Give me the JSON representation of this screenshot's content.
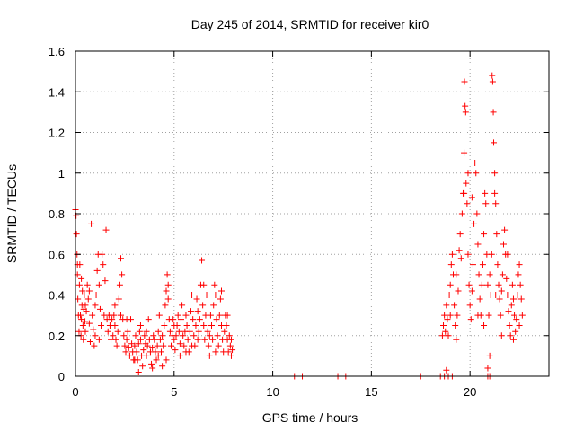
{
  "chart_data": {
    "type": "scatter",
    "title": "Day 245 of 2014, SRMTID for receiver kir0",
    "xlabel": "GPS time / hours",
    "ylabel": "SRMTID / TECUs",
    "xlim": [
      0,
      24
    ],
    "ylim": [
      0,
      1.6
    ],
    "xticks": [
      0,
      5,
      10,
      15,
      20
    ],
    "xtick_labels": [
      "0",
      "5",
      "10",
      "15",
      "20"
    ],
    "yticks": [
      0,
      0.2,
      0.4,
      0.6,
      0.8,
      1.0,
      1.2,
      1.4,
      1.6
    ],
    "ytick_labels": [
      "0",
      "0.2",
      "0.4",
      "0.6",
      "0.8",
      "1",
      "1.2",
      "1.4",
      "1.6"
    ],
    "grid": true,
    "marker": "+",
    "series": [
      {
        "name": "SRMTID",
        "color": "#ff0000",
        "points": [
          [
            0.0,
            0.82
          ],
          [
            0.03,
            0.79
          ],
          [
            0.05,
            0.7
          ],
          [
            0.08,
            0.6
          ],
          [
            0.1,
            0.5
          ],
          [
            0.12,
            0.38
          ],
          [
            0.15,
            0.3
          ],
          [
            0.18,
            0.22
          ],
          [
            0.2,
            0.45
          ],
          [
            0.22,
            0.55
          ],
          [
            0.25,
            0.3
          ],
          [
            0.28,
            0.2
          ],
          [
            0.3,
            0.28
          ],
          [
            0.33,
            0.35
          ],
          [
            0.35,
            0.42
          ],
          [
            0.38,
            0.25
          ],
          [
            0.4,
            0.18
          ],
          [
            0.42,
            0.33
          ],
          [
            0.45,
            0.4
          ],
          [
            0.48,
            0.27
          ],
          [
            0.5,
            0.22
          ],
          [
            0.55,
            0.32
          ],
          [
            0.6,
            0.45
          ],
          [
            0.65,
            0.38
          ],
          [
            0.7,
            0.26
          ],
          [
            0.75,
            0.17
          ],
          [
            0.8,
            0.75
          ],
          [
            0.85,
            0.3
          ],
          [
            0.9,
            0.23
          ],
          [
            0.95,
            0.15
          ],
          [
            1.0,
            0.35
          ],
          [
            1.05,
            0.4
          ],
          [
            1.1,
            0.52
          ],
          [
            1.15,
            0.6
          ],
          [
            1.2,
            0.45
          ],
          [
            1.25,
            0.33
          ],
          [
            1.3,
            0.25
          ],
          [
            1.35,
            0.6
          ],
          [
            1.4,
            0.55
          ],
          [
            1.45,
            0.3
          ],
          [
            1.5,
            0.47
          ],
          [
            1.55,
            0.72
          ],
          [
            1.6,
            0.28
          ],
          [
            1.65,
            0.22
          ],
          [
            1.7,
            0.3
          ],
          [
            1.75,
            0.25
          ],
          [
            1.8,
            0.18
          ],
          [
            1.85,
            0.28
          ],
          [
            1.9,
            0.2
          ],
          [
            1.95,
            0.3
          ],
          [
            2.0,
            0.25
          ],
          [
            2.05,
            0.18
          ],
          [
            2.1,
            0.15
          ],
          [
            2.15,
            0.22
          ],
          [
            2.2,
            0.38
          ],
          [
            2.25,
            0.45
          ],
          [
            2.3,
            0.58
          ],
          [
            2.35,
            0.5
          ],
          [
            2.4,
            0.28
          ],
          [
            2.45,
            0.2
          ],
          [
            2.5,
            0.15
          ],
          [
            2.55,
            0.12
          ],
          [
            2.6,
            0.18
          ],
          [
            2.65,
            0.22
          ],
          [
            2.7,
            0.14
          ],
          [
            2.75,
            0.1
          ],
          [
            2.8,
            0.28
          ],
          [
            2.85,
            0.16
          ],
          [
            2.9,
            0.12
          ],
          [
            2.95,
            0.08
          ],
          [
            3.0,
            0.15
          ],
          [
            3.05,
            0.2
          ],
          [
            3.1,
            0.12
          ],
          [
            3.15,
            0.08
          ],
          [
            3.2,
            0.16
          ],
          [
            3.25,
            0.22
          ],
          [
            3.3,
            0.18
          ],
          [
            3.35,
            0.1
          ],
          [
            3.4,
            0.05
          ],
          [
            3.45,
            0.13
          ],
          [
            3.5,
            0.2
          ],
          [
            3.55,
            0.16
          ],
          [
            3.6,
            0.1
          ],
          [
            3.65,
            0.15
          ],
          [
            3.7,
            0.28
          ],
          [
            3.75,
            0.18
          ],
          [
            3.8,
            0.12
          ],
          [
            3.85,
            0.06
          ],
          [
            3.9,
            0.14
          ],
          [
            3.95,
            0.2
          ],
          [
            4.0,
            0.18
          ],
          [
            4.05,
            0.12
          ],
          [
            4.1,
            0.08
          ],
          [
            4.15,
            0.15
          ],
          [
            4.2,
            0.22
          ],
          [
            4.25,
            0.3
          ],
          [
            4.3,
            0.18
          ],
          [
            4.35,
            0.12
          ],
          [
            4.4,
            0.2
          ],
          [
            4.45,
            0.15
          ],
          [
            4.5,
            0.25
          ],
          [
            4.55,
            0.35
          ],
          [
            4.6,
            0.42
          ],
          [
            4.65,
            0.5
          ],
          [
            4.7,
            0.38
          ],
          [
            4.75,
            0.28
          ],
          [
            4.8,
            0.22
          ],
          [
            4.85,
            0.15
          ],
          [
            4.9,
            0.2
          ],
          [
            4.95,
            0.28
          ],
          [
            5.0,
            0.18
          ],
          [
            5.05,
            0.13
          ],
          [
            5.1,
            0.2
          ],
          [
            5.15,
            0.25
          ],
          [
            5.2,
            0.3
          ],
          [
            5.25,
            0.22
          ],
          [
            5.3,
            0.16
          ],
          [
            5.35,
            0.28
          ],
          [
            5.4,
            0.35
          ],
          [
            5.45,
            0.2
          ],
          [
            5.5,
            0.15
          ],
          [
            5.55,
            0.22
          ],
          [
            5.6,
            0.3
          ],
          [
            5.65,
            0.25
          ],
          [
            5.7,
            0.18
          ],
          [
            5.75,
            0.12
          ],
          [
            5.8,
            0.22
          ],
          [
            5.85,
            0.32
          ],
          [
            5.9,
            0.4
          ],
          [
            5.95,
            0.28
          ],
          [
            6.0,
            0.2
          ],
          [
            6.05,
            0.15
          ],
          [
            6.1,
            0.25
          ],
          [
            6.15,
            0.38
          ],
          [
            6.2,
            0.32
          ],
          [
            6.25,
            0.22
          ],
          [
            6.3,
            0.28
          ],
          [
            6.35,
            0.45
          ],
          [
            6.4,
            0.57
          ],
          [
            6.45,
            0.35
          ],
          [
            6.5,
            0.25
          ],
          [
            6.55,
            0.18
          ],
          [
            6.6,
            0.3
          ],
          [
            6.65,
            0.4
          ],
          [
            6.7,
            0.22
          ],
          [
            6.75,
            0.15
          ],
          [
            6.8,
            0.2
          ],
          [
            6.85,
            0.3
          ],
          [
            6.9,
            0.25
          ],
          [
            6.95,
            0.18
          ],
          [
            7.0,
            0.35
          ],
          [
            7.05,
            0.45
          ],
          [
            7.1,
            0.4
          ],
          [
            7.15,
            0.28
          ],
          [
            7.2,
            0.2
          ],
          [
            7.25,
            0.15
          ],
          [
            7.3,
            0.3
          ],
          [
            7.35,
            0.38
          ],
          [
            7.4,
            0.25
          ],
          [
            7.45,
            0.18
          ],
          [
            7.5,
            0.12
          ],
          [
            7.55,
            0.22
          ],
          [
            7.6,
            0.3
          ],
          [
            7.65,
            0.25
          ],
          [
            7.7,
            0.18
          ],
          [
            7.75,
            0.12
          ],
          [
            7.8,
            0.2
          ],
          [
            7.85,
            0.15
          ],
          [
            7.9,
            0.1
          ],
          [
            7.95,
            0.13
          ],
          [
            0.1,
            0.55
          ],
          [
            0.3,
            0.48
          ],
          [
            0.5,
            0.35
          ],
          [
            0.7,
            0.42
          ],
          [
            1.0,
            0.2
          ],
          [
            1.2,
            0.18
          ],
          [
            1.8,
            0.3
          ],
          [
            2.0,
            0.35
          ],
          [
            2.3,
            0.3
          ],
          [
            2.6,
            0.28
          ],
          [
            3.0,
            0.08
          ],
          [
            3.3,
            0.25
          ],
          [
            3.6,
            0.22
          ],
          [
            3.9,
            0.04
          ],
          [
            4.2,
            0.1
          ],
          [
            4.4,
            0.05
          ],
          [
            4.7,
            0.45
          ],
          [
            5.0,
            0.25
          ],
          [
            5.3,
            0.1
          ],
          [
            5.6,
            0.12
          ],
          [
            5.9,
            0.15
          ],
          [
            6.2,
            0.18
          ],
          [
            6.5,
            0.45
          ],
          [
            6.8,
            0.1
          ],
          [
            7.1,
            0.12
          ],
          [
            7.4,
            0.42
          ],
          [
            7.7,
            0.3
          ],
          [
            7.9,
            0.18
          ],
          [
            3.2,
            0.02
          ],
          [
            4.6,
            0.08
          ],
          [
            11.1,
            0.0
          ],
          [
            11.5,
            0.0
          ],
          [
            13.3,
            0.0
          ],
          [
            13.7,
            0.0
          ],
          [
            17.5,
            0.0
          ],
          [
            18.5,
            0.0
          ],
          [
            18.7,
            0.0
          ],
          [
            18.9,
            0.0
          ],
          [
            19.1,
            0.0
          ],
          [
            20.9,
            0.0
          ],
          [
            21.0,
            0.0
          ],
          [
            18.8,
            0.03
          ],
          [
            20.9,
            0.04
          ],
          [
            18.6,
            0.2
          ],
          [
            18.65,
            0.25
          ],
          [
            18.7,
            0.3
          ],
          [
            18.75,
            0.22
          ],
          [
            18.8,
            0.35
          ],
          [
            18.85,
            0.28
          ],
          [
            18.9,
            0.2
          ],
          [
            18.95,
            0.4
          ],
          [
            19.0,
            0.45
          ],
          [
            19.05,
            0.55
          ],
          [
            19.1,
            0.6
          ],
          [
            19.15,
            0.5
          ],
          [
            19.2,
            0.35
          ],
          [
            19.25,
            0.25
          ],
          [
            19.3,
            0.18
          ],
          [
            19.35,
            0.3
          ],
          [
            19.4,
            0.42
          ],
          [
            19.45,
            0.62
          ],
          [
            19.5,
            0.7
          ],
          [
            19.55,
            0.58
          ],
          [
            19.6,
            0.8
          ],
          [
            19.65,
            0.9
          ],
          [
            19.7,
            1.1
          ],
          [
            19.72,
            1.45
          ],
          [
            19.75,
            1.33
          ],
          [
            19.78,
            1.3
          ],
          [
            19.8,
            0.95
          ],
          [
            19.85,
            0.85
          ],
          [
            19.9,
            0.6
          ],
          [
            19.95,
            0.45
          ],
          [
            20.0,
            0.35
          ],
          [
            20.05,
            0.28
          ],
          [
            20.1,
            0.42
          ],
          [
            20.15,
            0.55
          ],
          [
            20.2,
            0.75
          ],
          [
            20.25,
            1.05
          ],
          [
            20.3,
            1.0
          ],
          [
            20.35,
            0.8
          ],
          [
            20.4,
            0.65
          ],
          [
            20.45,
            0.5
          ],
          [
            20.5,
            0.38
          ],
          [
            20.55,
            0.3
          ],
          [
            20.6,
            0.45
          ],
          [
            20.65,
            0.55
          ],
          [
            20.7,
            0.7
          ],
          [
            20.75,
            0.9
          ],
          [
            20.8,
            0.85
          ],
          [
            20.85,
            0.6
          ],
          [
            20.9,
            0.45
          ],
          [
            20.95,
            0.3
          ],
          [
            21.0,
            0.1
          ],
          [
            21.05,
            0.4
          ],
          [
            21.1,
            0.6
          ],
          [
            21.12,
            1.48
          ],
          [
            21.15,
            1.45
          ],
          [
            21.18,
            1.3
          ],
          [
            21.2,
            1.15
          ],
          [
            21.25,
            1.0
          ],
          [
            21.3,
            0.85
          ],
          [
            21.35,
            0.7
          ],
          [
            21.4,
            0.55
          ],
          [
            21.45,
            0.45
          ],
          [
            21.5,
            0.38
          ],
          [
            21.55,
            0.3
          ],
          [
            21.6,
            0.42
          ],
          [
            21.65,
            0.5
          ],
          [
            21.7,
            0.65
          ],
          [
            21.75,
            0.72
          ],
          [
            21.8,
            0.6
          ],
          [
            21.85,
            0.48
          ],
          [
            21.9,
            0.4
          ],
          [
            21.95,
            0.32
          ],
          [
            22.0,
            0.25
          ],
          [
            22.05,
            0.2
          ],
          [
            22.1,
            0.35
          ],
          [
            22.15,
            0.45
          ],
          [
            22.2,
            0.38
          ],
          [
            22.25,
            0.3
          ],
          [
            22.3,
            0.22
          ],
          [
            22.35,
            0.28
          ],
          [
            22.4,
            0.4
          ],
          [
            22.45,
            0.5
          ],
          [
            22.5,
            0.55
          ],
          [
            22.55,
            0.45
          ],
          [
            22.6,
            0.38
          ],
          [
            22.65,
            0.3
          ],
          [
            19.0,
            0.3
          ],
          [
            19.3,
            0.5
          ],
          [
            19.7,
            0.9
          ],
          [
            20.1,
            0.88
          ],
          [
            20.4,
            0.3
          ],
          [
            20.7,
            0.25
          ],
          [
            21.0,
            0.5
          ],
          [
            21.3,
            0.4
          ],
          [
            21.6,
            0.2
          ],
          [
            21.9,
            0.6
          ],
          [
            22.2,
            0.18
          ],
          [
            22.5,
            0.25
          ],
          [
            19.9,
            1.0
          ],
          [
            21.25,
            0.9
          ]
        ]
      }
    ]
  }
}
